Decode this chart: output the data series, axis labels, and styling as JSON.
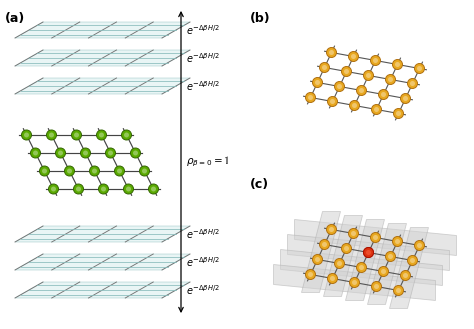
{
  "fig_width": 4.74,
  "fig_height": 3.29,
  "dpi": 100,
  "bg_color": "#ffffff",
  "label_a": "(a)",
  "label_b": "(b)",
  "label_c": "(c)",
  "label_fontsize": 9,
  "node_green": "#5aaa00",
  "node_green_edge": "#336600",
  "node_orange": "#e8a820",
  "node_orange_light": "#f5d070",
  "node_orange_edge": "#b07010",
  "node_red": "#dd3311",
  "node_red_light": "#ff6644",
  "node_red_edge": "#aa1100",
  "line_color": "#555555",
  "layer_fill": "#c8e8e8",
  "layer_edge": "#88bbbb",
  "layer_alpha": 0.45,
  "text_fontsize": 7,
  "rho_fontsize": 7.5
}
